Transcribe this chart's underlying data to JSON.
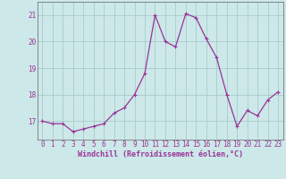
{
  "x": [
    0,
    1,
    2,
    3,
    4,
    5,
    6,
    7,
    8,
    9,
    10,
    11,
    12,
    13,
    14,
    15,
    16,
    17,
    18,
    19,
    20,
    21,
    22,
    23
  ],
  "y": [
    17.0,
    16.9,
    16.9,
    16.6,
    16.7,
    16.8,
    16.9,
    17.3,
    17.5,
    18.0,
    18.8,
    21.0,
    20.0,
    19.8,
    21.05,
    20.9,
    20.1,
    19.4,
    18.0,
    16.8,
    17.4,
    17.2,
    17.8,
    18.1
  ],
  "line_color": "#993399",
  "marker": "+",
  "marker_size": 3.5,
  "linewidth": 0.9,
  "bg_color": "#cce8e8",
  "grid_color": "#aacccc",
  "xlabel": "Windchill (Refroidissement éolien,°C)",
  "xlabel_color": "#993399",
  "xlabel_fontsize": 6.0,
  "tick_color": "#993399",
  "tick_fontsize": 5.5,
  "ytick_labels": [
    "17",
    "18",
    "19",
    "20",
    "21"
  ],
  "ytick_values": [
    17,
    18,
    19,
    20,
    21
  ],
  "ylim": [
    16.3,
    21.5
  ],
  "xlim": [
    -0.5,
    23.5
  ],
  "xtick_labels": [
    "0",
    "1",
    "2",
    "3",
    "4",
    "5",
    "6",
    "7",
    "8",
    "9",
    "10",
    "11",
    "12",
    "13",
    "14",
    "15",
    "16",
    "17",
    "18",
    "19",
    "20",
    "21",
    "22",
    "23"
  ]
}
